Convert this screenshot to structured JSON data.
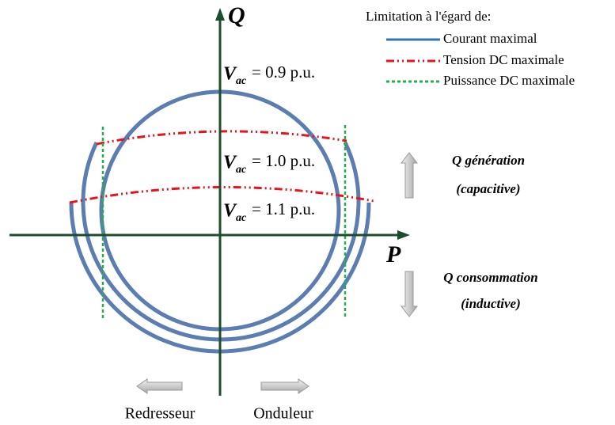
{
  "axes": {
    "vertical": "Q",
    "horizontal": "P"
  },
  "legend": {
    "title": "Limitation à l'égard de:",
    "entries": [
      "Courant maximal",
      "Tension DC maximale",
      "Puissance DC maximale"
    ]
  },
  "voltage_labels": [
    {
      "symbol": "V",
      "subscript": "ac",
      "text": "= 0.9 p.u."
    },
    {
      "symbol": "V",
      "subscript": "ac",
      "text": "= 1.0 p.u."
    },
    {
      "symbol": "V",
      "subscript": "ac",
      "text": "= 1.1 p.u."
    }
  ],
  "annotations": {
    "generation": "Q génération",
    "capacitive": "(capacitive)",
    "consumption": "Q consommation",
    "inductive": "(inductive)"
  },
  "directions": {
    "rectifier": "Redresseur",
    "inverter": "Onduleur"
  }
}
